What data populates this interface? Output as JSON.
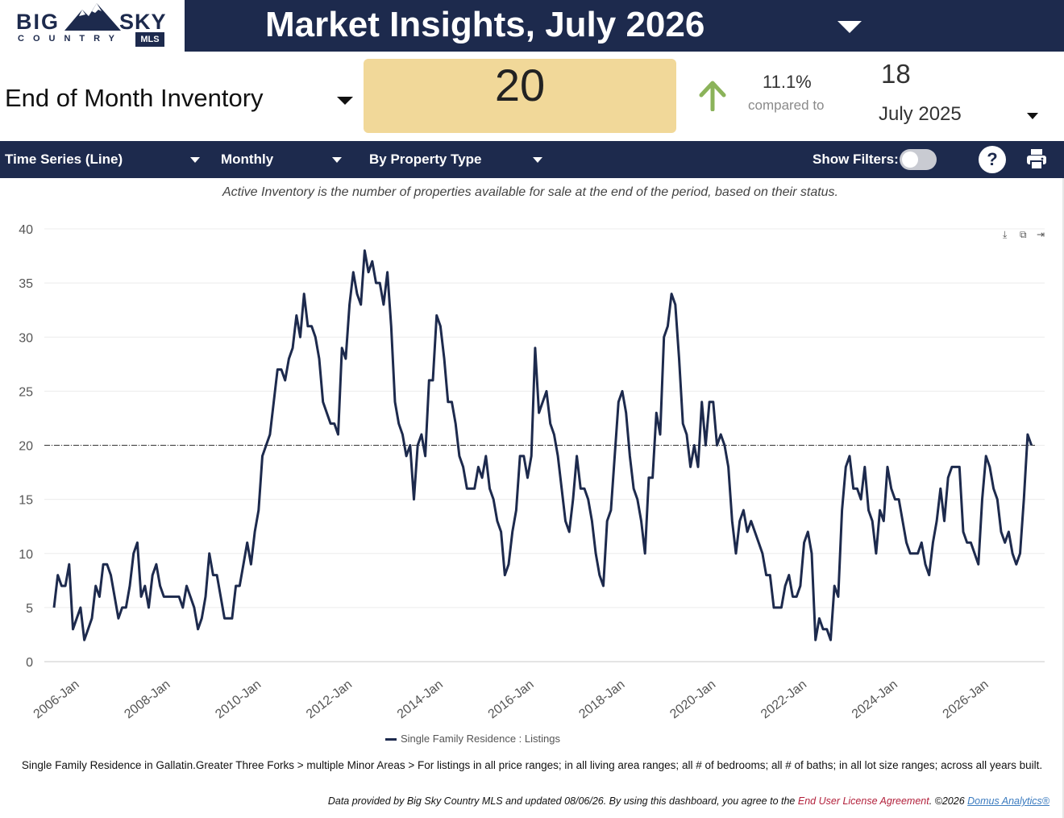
{
  "logo": {
    "word1": "BIG",
    "word2": "SKY",
    "word3": "COUNTRY",
    "badge": "MLS"
  },
  "header": {
    "title": "Market Insights, July 2026"
  },
  "metric": {
    "label": "End of Month Inventory",
    "value": "20",
    "change_pct": "11.1%",
    "compared_label": "compared to",
    "previous_value": "18",
    "previous_period": "July 2025",
    "trend": "up",
    "trend_color": "#8bb35a"
  },
  "toolbar": {
    "chart_type": "Time Series (Line)",
    "frequency": "Monthly",
    "grouping": "By Property Type",
    "show_filters_label": "Show Filters:",
    "show_filters_on": false,
    "help_label": "?"
  },
  "description": "Active Inventory is the number of properties available for sale at the end of the period, based on their status.",
  "chart_data": {
    "type": "line",
    "ylim": [
      0,
      40
    ],
    "yticks": [
      0,
      5,
      10,
      15,
      20,
      25,
      30,
      35,
      40
    ],
    "x_start": "2005-07",
    "x_tick_labels": [
      "2006-Jan",
      "2008-Jan",
      "2010-Jan",
      "2012-Jan",
      "2014-Jan",
      "2016-Jan",
      "2018-Jan",
      "2020-Jan",
      "2022-Jan",
      "2024-Jan",
      "2026-Jan"
    ],
    "reference_line": 20,
    "grid": true,
    "legend_position": "bottom",
    "series": [
      {
        "name": "Single Family Residence : Listings",
        "color": "#1d2a4d",
        "values": [
          5,
          8,
          7,
          7,
          9,
          3,
          4,
          5,
          2,
          3,
          4,
          7,
          6,
          9,
          9,
          8,
          6,
          4,
          5,
          5,
          7,
          10,
          11,
          6,
          7,
          5,
          8,
          9,
          7,
          6,
          6,
          6,
          6,
          6,
          5,
          7,
          6,
          5,
          3,
          4,
          6,
          10,
          8,
          8,
          6,
          4,
          4,
          4,
          7,
          7,
          9,
          11,
          9,
          12,
          14,
          19,
          20,
          21,
          24,
          27,
          27,
          26,
          28,
          29,
          32,
          30,
          34,
          31,
          31,
          30,
          28,
          24,
          23,
          22,
          22,
          21,
          29,
          28,
          33,
          36,
          34,
          33,
          38,
          36,
          37,
          35,
          35,
          33,
          36,
          31,
          24,
          22,
          21,
          19,
          20,
          15,
          20,
          21,
          19,
          26,
          26,
          32,
          31,
          28,
          24,
          24,
          22,
          19,
          18,
          16,
          16,
          16,
          18,
          17,
          19,
          16,
          15,
          13,
          12,
          8,
          9,
          12,
          14,
          19,
          19,
          17,
          19,
          29,
          23,
          24,
          25,
          22,
          21,
          19,
          16,
          13,
          12,
          15,
          19,
          16,
          16,
          15,
          13,
          10,
          8,
          7,
          13,
          14,
          19,
          24,
          25,
          23,
          19,
          16,
          15,
          13,
          10,
          17,
          17,
          23,
          21,
          30,
          31,
          34,
          33,
          28,
          22,
          21,
          18,
          20,
          18,
          24,
          20,
          24,
          24,
          20,
          21,
          20,
          18,
          13,
          10,
          13,
          14,
          12,
          13,
          12,
          11,
          10,
          8,
          8,
          5,
          5,
          5,
          7,
          8,
          6,
          6,
          7,
          11,
          12,
          10,
          2,
          4,
          3,
          3,
          2,
          7,
          6,
          14,
          18,
          19,
          16,
          16,
          15,
          18,
          14,
          13,
          10,
          14,
          13,
          18,
          16,
          15,
          15,
          13,
          11,
          10,
          10,
          10,
          11,
          9,
          8,
          11,
          13,
          16,
          13,
          17,
          18,
          18,
          18,
          12,
          11,
          11,
          10,
          9,
          15,
          19,
          18,
          16,
          15,
          12,
          11,
          12,
          10,
          9,
          10,
          15,
          21,
          20
        ]
      }
    ]
  },
  "footnote": "Single Family Residence in Gallatin.Greater Three Forks > multiple Minor Areas > For listings in all price ranges; in all living area ranges; all # of bedrooms; all # of baths; in all lot size ranges; across all years built.",
  "credits": {
    "text": "Data provided by Big Sky Country MLS and updated 08/06/26.  By using this dashboard, you agree to the",
    "eula": "End User License Agreement",
    "copyright": ".  ©2026",
    "domus": "Domus Analytics®"
  },
  "icons": [
    "mountain-logo-icon",
    "caret-down-icon",
    "arrow-up-icon",
    "question-icon",
    "printer-icon",
    "download-icon",
    "copy-icon",
    "export-icon"
  ]
}
